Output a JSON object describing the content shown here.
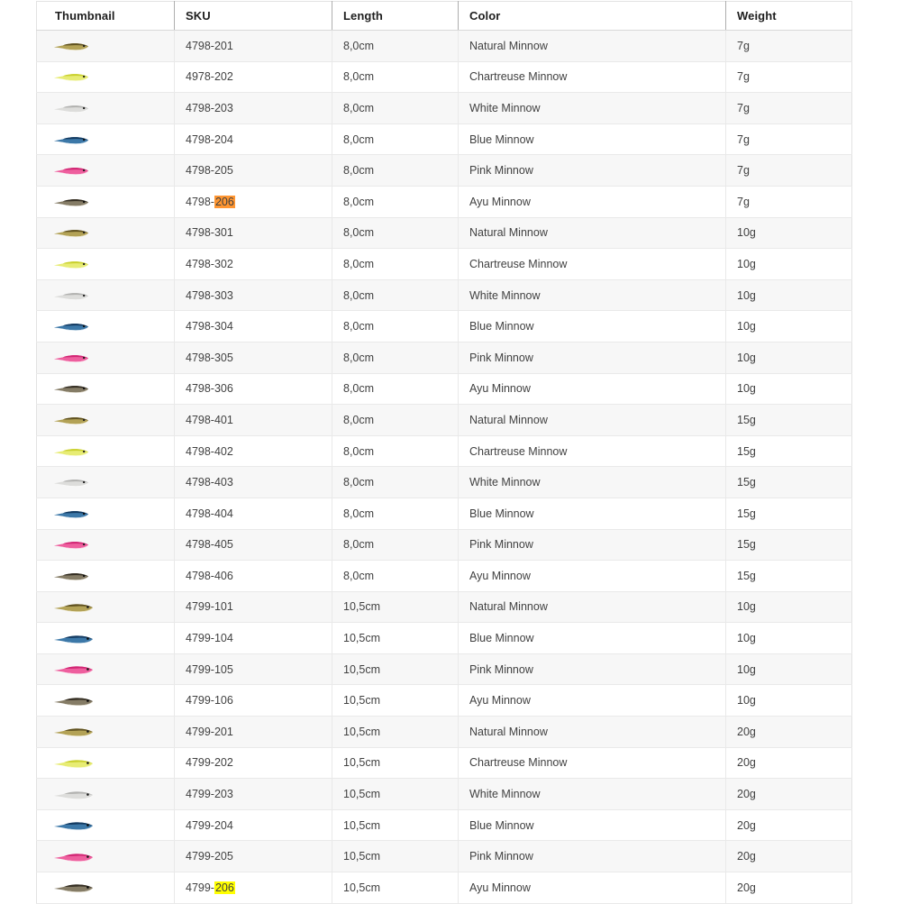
{
  "table": {
    "columns": [
      {
        "key": "thumbnail",
        "label": "Thumbnail"
      },
      {
        "key": "sku",
        "label": "SKU"
      },
      {
        "key": "length",
        "label": "Length"
      },
      {
        "key": "color",
        "label": "Color"
      },
      {
        "key": "weight",
        "label": "Weight"
      }
    ],
    "find_highlights": {
      "active_bg": "#ff9632",
      "match_bg": "#ffff00"
    },
    "lure_colors": {
      "natural": {
        "body": "#b3a256",
        "back": "#5f5120",
        "belly": "#ece5c6",
        "eye": "#1a1a1a"
      },
      "chartreuse": {
        "body": "#e7ec74",
        "back": "#c9d02f",
        "belly": "#f7f9cf",
        "eye": "#1a1a1a"
      },
      "white": {
        "body": "#dddddb",
        "back": "#b2b2b0",
        "belly": "#fbfbfa",
        "eye": "#1a1a1a"
      },
      "blue": {
        "body": "#3c78a8",
        "back": "#143a60",
        "belly": "#d7e5ef",
        "eye": "#0a0a0a"
      },
      "pink": {
        "body": "#ee5f9e",
        "back": "#d12573",
        "belly": "#fbd2e4",
        "eye": "#1a1a1a"
      },
      "ayu": {
        "body": "#857c66",
        "back": "#332d22",
        "belly": "#ddd7c7",
        "eye": "#0a0a0a"
      }
    },
    "rows": [
      {
        "sku": "4798-201",
        "sku_highlight": null,
        "length": "8,0cm",
        "color": "Natural Minnow",
        "weight": "7g",
        "variant": "natural"
      },
      {
        "sku": "4978-202",
        "sku_highlight": null,
        "length": "8,0cm",
        "color": "Chartreuse Minnow",
        "weight": "7g",
        "variant": "chartreuse"
      },
      {
        "sku": "4798-203",
        "sku_highlight": null,
        "length": "8,0cm",
        "color": "White Minnow",
        "weight": "7g",
        "variant": "white"
      },
      {
        "sku": "4798-204",
        "sku_highlight": null,
        "length": "8,0cm",
        "color": "Blue Minnow",
        "weight": "7g",
        "variant": "blue"
      },
      {
        "sku": "4798-205",
        "sku_highlight": null,
        "length": "8,0cm",
        "color": "Pink Minnow",
        "weight": "7g",
        "variant": "pink"
      },
      {
        "sku": "4798-206",
        "sku_highlight": {
          "prefix": "4798-",
          "text": "206",
          "type": "active"
        },
        "length": "8,0cm",
        "color": "Ayu Minnow",
        "weight": "7g",
        "variant": "ayu"
      },
      {
        "sku": "4798-301",
        "sku_highlight": null,
        "length": "8,0cm",
        "color": "Natural Minnow",
        "weight": "10g",
        "variant": "natural"
      },
      {
        "sku": "4798-302",
        "sku_highlight": null,
        "length": "8,0cm",
        "color": "Chartreuse Minnow",
        "weight": "10g",
        "variant": "chartreuse"
      },
      {
        "sku": "4798-303",
        "sku_highlight": null,
        "length": "8,0cm",
        "color": "White Minnow",
        "weight": "10g",
        "variant": "white"
      },
      {
        "sku": "4798-304",
        "sku_highlight": null,
        "length": "8,0cm",
        "color": "Blue Minnow",
        "weight": "10g",
        "variant": "blue"
      },
      {
        "sku": "4798-305",
        "sku_highlight": null,
        "length": "8,0cm",
        "color": "Pink Minnow",
        "weight": "10g",
        "variant": "pink"
      },
      {
        "sku": "4798-306",
        "sku_highlight": null,
        "length": "8,0cm",
        "color": "Ayu Minnow",
        "weight": "10g",
        "variant": "ayu"
      },
      {
        "sku": "4798-401",
        "sku_highlight": null,
        "length": "8,0cm",
        "color": "Natural Minnow",
        "weight": "15g",
        "variant": "natural"
      },
      {
        "sku": "4798-402",
        "sku_highlight": null,
        "length": "8,0cm",
        "color": "Chartreuse Minnow",
        "weight": "15g",
        "variant": "chartreuse"
      },
      {
        "sku": "4798-403",
        "sku_highlight": null,
        "length": "8,0cm",
        "color": "White Minnow",
        "weight": "15g",
        "variant": "white"
      },
      {
        "sku": "4798-404",
        "sku_highlight": null,
        "length": "8,0cm",
        "color": "Blue Minnow",
        "weight": "15g",
        "variant": "blue"
      },
      {
        "sku": "4798-405",
        "sku_highlight": null,
        "length": "8,0cm",
        "color": "Pink Minnow",
        "weight": "15g",
        "variant": "pink"
      },
      {
        "sku": "4798-406",
        "sku_highlight": null,
        "length": "8,0cm",
        "color": "Ayu Minnow",
        "weight": "15g",
        "variant": "ayu"
      },
      {
        "sku": "4799-101",
        "sku_highlight": null,
        "length": "10,5cm",
        "color": "Natural Minnow",
        "weight": "10g",
        "variant": "natural"
      },
      {
        "sku": "4799-104",
        "sku_highlight": null,
        "length": "10,5cm",
        "color": "Blue Minnow",
        "weight": "10g",
        "variant": "blue"
      },
      {
        "sku": "4799-105",
        "sku_highlight": null,
        "length": "10,5cm",
        "color": "Pink Minnow",
        "weight": "10g",
        "variant": "pink"
      },
      {
        "sku": "4799-106",
        "sku_highlight": null,
        "length": "10,5cm",
        "color": "Ayu Minnow",
        "weight": "10g",
        "variant": "ayu"
      },
      {
        "sku": "4799-201",
        "sku_highlight": null,
        "length": "10,5cm",
        "color": "Natural Minnow",
        "weight": "20g",
        "variant": "natural"
      },
      {
        "sku": "4799-202",
        "sku_highlight": null,
        "length": "10,5cm",
        "color": "Chartreuse Minnow",
        "weight": "20g",
        "variant": "chartreuse"
      },
      {
        "sku": "4799-203",
        "sku_highlight": null,
        "length": "10,5cm",
        "color": "White Minnow",
        "weight": "20g",
        "variant": "white"
      },
      {
        "sku": "4799-204",
        "sku_highlight": null,
        "length": "10,5cm",
        "color": "Blue Minnow",
        "weight": "20g",
        "variant": "blue"
      },
      {
        "sku": "4799-205",
        "sku_highlight": null,
        "length": "10,5cm",
        "color": "Pink Minnow",
        "weight": "20g",
        "variant": "pink"
      },
      {
        "sku": "4799-206",
        "sku_highlight": {
          "prefix": "4799-",
          "text": "206",
          "type": "match"
        },
        "length": "10,5cm",
        "color": "Ayu Minnow",
        "weight": "20g",
        "variant": "ayu"
      }
    ]
  }
}
